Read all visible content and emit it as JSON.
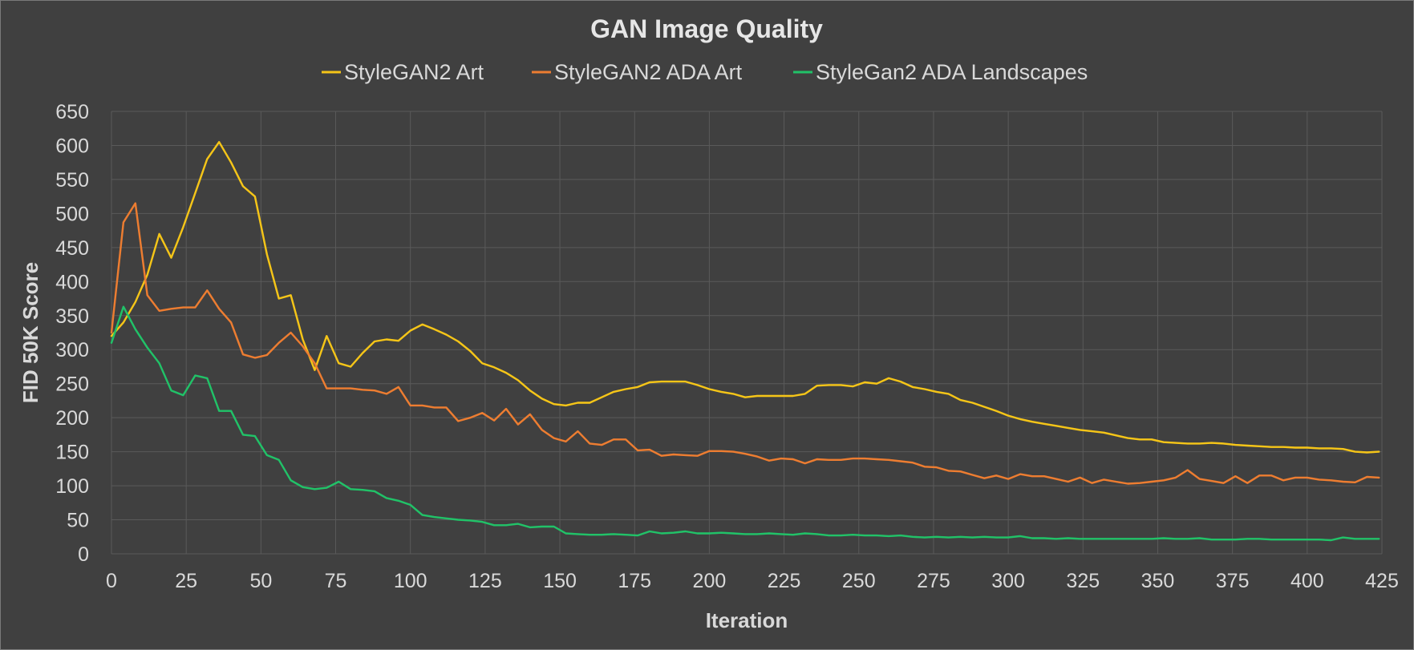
{
  "chart_data": {
    "type": "line",
    "title": "GAN Image Quality",
    "xlabel": "Iteration",
    "ylabel": "FID 50K Score",
    "xlim": [
      0,
      425
    ],
    "ylim": [
      0,
      650
    ],
    "xticks": [
      0,
      25,
      50,
      75,
      100,
      125,
      150,
      175,
      200,
      225,
      250,
      275,
      300,
      325,
      350,
      375,
      400,
      425
    ],
    "yticks": [
      0,
      50,
      100,
      150,
      200,
      250,
      300,
      350,
      400,
      450,
      500,
      550,
      600,
      650
    ],
    "grid": true,
    "legend_position": "top",
    "series": [
      {
        "name": "StyleGAN2 Art",
        "color": "#f5c518",
        "x": [
          0,
          4,
          8,
          12,
          16,
          20,
          24,
          28,
          32,
          36,
          40,
          44,
          48,
          52,
          56,
          60,
          64,
          68,
          72,
          76,
          80,
          84,
          88,
          92,
          96,
          100,
          104,
          108,
          112,
          116,
          120,
          124,
          128,
          132,
          136,
          140,
          144,
          148,
          152,
          156,
          160,
          164,
          168,
          172,
          176,
          180,
          184,
          188,
          192,
          196,
          200,
          204,
          208,
          212,
          216,
          220,
          224,
          228,
          232,
          236,
          240,
          244,
          248,
          252,
          256,
          260,
          264,
          268,
          272,
          276,
          280,
          284,
          288,
          292,
          296,
          300,
          304,
          308,
          312,
          316,
          320,
          324,
          328,
          332,
          336,
          340,
          344,
          348,
          352,
          356,
          360,
          364,
          368,
          372,
          376,
          380,
          384,
          388,
          392,
          396,
          400,
          404,
          408,
          412,
          416,
          420,
          424
        ],
        "y": [
          320,
          340,
          370,
          410,
          470,
          435,
          480,
          530,
          580,
          605,
          575,
          540,
          525,
          440,
          375,
          380,
          315,
          270,
          320,
          280,
          275,
          295,
          312,
          315,
          313,
          328,
          337,
          330,
          322,
          312,
          298,
          280,
          274,
          266,
          255,
          240,
          228,
          220,
          218,
          222,
          222,
          230,
          238,
          242,
          245,
          252,
          253,
          253,
          253,
          248,
          242,
          238,
          235,
          230,
          232,
          232,
          232,
          232,
          235,
          247,
          248,
          248,
          246,
          252,
          250,
          258,
          253,
          245,
          242,
          238,
          235,
          226,
          222,
          216,
          210,
          203,
          198,
          194,
          191,
          188,
          185,
          182,
          180,
          178,
          174,
          170,
          168,
          168,
          164,
          163,
          162,
          162,
          163,
          162,
          160,
          159,
          158,
          157,
          157,
          156,
          156,
          155,
          155,
          154,
          150,
          149,
          150
        ]
      },
      {
        "name": "StyleGAN2 ADA Art",
        "color": "#ed7d31",
        "x": [
          0,
          4,
          8,
          12,
          16,
          20,
          24,
          28,
          32,
          36,
          40,
          44,
          48,
          52,
          56,
          60,
          64,
          68,
          72,
          76,
          80,
          84,
          88,
          92,
          96,
          100,
          104,
          108,
          112,
          116,
          120,
          124,
          128,
          132,
          136,
          140,
          144,
          148,
          152,
          156,
          160,
          164,
          168,
          172,
          176,
          180,
          184,
          188,
          192,
          196,
          200,
          204,
          208,
          212,
          216,
          220,
          224,
          228,
          232,
          236,
          240,
          244,
          248,
          252,
          256,
          260,
          264,
          268,
          272,
          276,
          280,
          284,
          288,
          292,
          296,
          300,
          304,
          308,
          312,
          316,
          320,
          324,
          328,
          332,
          336,
          340,
          344,
          348,
          352,
          356,
          360,
          364,
          368,
          372,
          376,
          380,
          384,
          388,
          392,
          396,
          400,
          404,
          408,
          412,
          416,
          420,
          424
        ],
        "y": [
          325,
          487,
          515,
          380,
          357,
          360,
          362,
          362,
          387,
          360,
          340,
          293,
          288,
          292,
          310,
          325,
          305,
          280,
          243,
          243,
          243,
          241,
          240,
          235,
          245,
          218,
          218,
          215,
          215,
          195,
          200,
          207,
          196,
          213,
          190,
          205,
          182,
          170,
          165,
          180,
          162,
          160,
          168,
          168,
          152,
          153,
          144,
          146,
          145,
          144,
          151,
          151,
          150,
          147,
          143,
          137,
          140,
          139,
          133,
          139,
          138,
          138,
          140,
          140,
          139,
          138,
          136,
          134,
          128,
          127,
          122,
          121,
          116,
          111,
          115,
          110,
          117,
          114,
          114,
          110,
          106,
          112,
          104,
          109,
          106,
          103,
          104,
          106,
          108,
          112,
          123,
          110,
          107,
          104,
          114,
          104,
          115,
          115,
          108,
          112,
          112,
          109,
          108,
          106,
          105,
          113,
          112
        ]
      },
      {
        "name": "StyleGan2 ADA Landscapes",
        "color": "#21c268",
        "x": [
          0,
          4,
          8,
          12,
          16,
          20,
          24,
          28,
          32,
          36,
          40,
          44,
          48,
          52,
          56,
          60,
          64,
          68,
          72,
          76,
          80,
          84,
          88,
          92,
          96,
          100,
          104,
          108,
          112,
          116,
          120,
          124,
          128,
          132,
          136,
          140,
          144,
          148,
          152,
          156,
          160,
          164,
          168,
          172,
          176,
          180,
          184,
          188,
          192,
          196,
          200,
          204,
          208,
          212,
          216,
          220,
          224,
          228,
          232,
          236,
          240,
          244,
          248,
          252,
          256,
          260,
          264,
          268,
          272,
          276,
          280,
          284,
          288,
          292,
          296,
          300,
          304,
          308,
          312,
          316,
          320,
          324,
          328,
          332,
          336,
          340,
          344,
          348,
          352,
          356,
          360,
          364,
          368,
          372,
          376,
          380,
          384,
          388,
          392,
          396,
          400,
          404,
          408,
          412,
          416,
          420,
          424
        ],
        "y": [
          310,
          363,
          330,
          303,
          280,
          240,
          233,
          262,
          258,
          210,
          210,
          175,
          173,
          145,
          138,
          108,
          98,
          95,
          97,
          106,
          95,
          94,
          92,
          82,
          78,
          72,
          57,
          54,
          52,
          50,
          49,
          47,
          42,
          42,
          44,
          39,
          40,
          40,
          30,
          29,
          28,
          28,
          29,
          28,
          27,
          33,
          30,
          31,
          33,
          30,
          30,
          31,
          30,
          29,
          29,
          30,
          29,
          28,
          30,
          29,
          27,
          27,
          28,
          27,
          27,
          26,
          27,
          25,
          24,
          25,
          24,
          25,
          24,
          25,
          24,
          24,
          26,
          23,
          23,
          22,
          23,
          22,
          22,
          22,
          22,
          22,
          22,
          22,
          23,
          22,
          22,
          23,
          21,
          21,
          21,
          22,
          22,
          21,
          21,
          21,
          21,
          21,
          20,
          24,
          22,
          22,
          22
        ]
      }
    ]
  }
}
